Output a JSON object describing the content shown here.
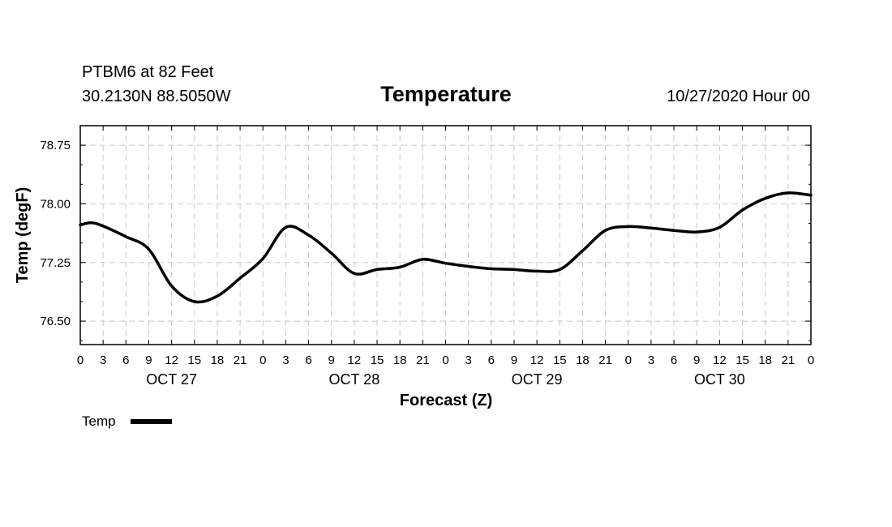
{
  "header": {
    "station": "PTBM6 at 82 Feet",
    "coords": "30.2130N 88.5050W",
    "datetime": "10/27/2020 Hour 00"
  },
  "chart_data": {
    "type": "line",
    "title": "Temperature",
    "xlabel": "Forecast (Z)",
    "ylabel": "Temp (degF)",
    "ylim": [
      76.2,
      79.0
    ],
    "yticks": [
      "76.50",
      "77.25",
      "78.00",
      "78.75"
    ],
    "ytick_values": [
      76.5,
      77.25,
      78.0,
      78.75
    ],
    "xlim": [
      0,
      96
    ],
    "xtick_labels": [
      "0",
      "3",
      "6",
      "9",
      "12",
      "15",
      "18",
      "21",
      "0",
      "3",
      "6",
      "9",
      "12",
      "15",
      "18",
      "21",
      "0",
      "3",
      "6",
      "9",
      "12",
      "15",
      "18",
      "21",
      "0",
      "3",
      "6",
      "9",
      "12",
      "15",
      "18",
      "21",
      "0"
    ],
    "day_labels": [
      {
        "label": "OCT 27",
        "hour": 12
      },
      {
        "label": "OCT 28",
        "hour": 36
      },
      {
        "label": "OCT 29",
        "hour": 60
      },
      {
        "label": "OCT 30",
        "hour": 84
      }
    ],
    "grid": true,
    "legend_position": "bottom-left",
    "series": [
      {
        "name": "Temp",
        "color": "#000000",
        "x": [
          0,
          2,
          6,
          9,
          12,
          15,
          18,
          21,
          24,
          27,
          30,
          33,
          36,
          39,
          42,
          45,
          48,
          51,
          54,
          57,
          60,
          63,
          66,
          69,
          72,
          75,
          78,
          81,
          84,
          87,
          90,
          93,
          96
        ],
        "y": [
          77.73,
          77.75,
          77.58,
          77.42,
          76.95,
          76.75,
          76.82,
          77.05,
          77.3,
          77.7,
          77.6,
          77.37,
          77.11,
          77.16,
          77.19,
          77.29,
          77.24,
          77.2,
          77.17,
          77.16,
          77.14,
          77.16,
          77.4,
          77.66,
          77.71,
          77.69,
          77.66,
          77.64,
          77.7,
          77.92,
          78.07,
          78.14,
          78.11
        ]
      }
    ]
  }
}
